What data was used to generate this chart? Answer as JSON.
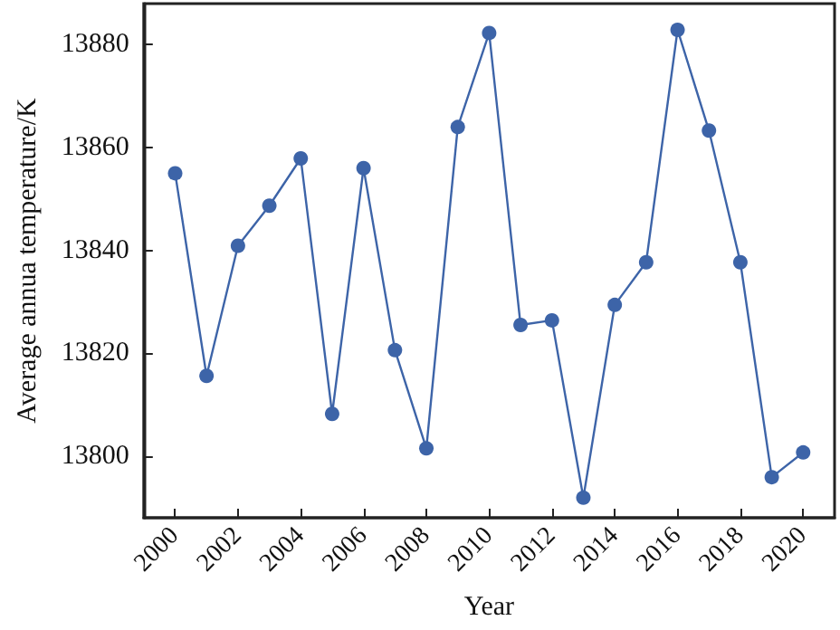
{
  "chart_data": {
    "type": "line",
    "xlabel": "Year",
    "ylabel": "Average annua temperature/K",
    "x": [
      2000,
      2001,
      2002,
      2003,
      2004,
      2005,
      2006,
      2007,
      2008,
      2009,
      2010,
      2011,
      2012,
      2013,
      2014,
      2015,
      2016,
      2017,
      2018,
      2019,
      2020
    ],
    "series": [
      {
        "color": "#3d64a8",
        "values": [
          13855,
          13815.6,
          13840.9,
          13848.7,
          13857.9,
          13808.2,
          13856,
          13820.6,
          13801.5,
          13864,
          13882.3,
          13825.5,
          13826.4,
          13791.9,
          13829.4,
          13837.7,
          13882.9,
          13863.3,
          13837.7,
          13795.9,
          13800.7
        ]
      }
    ],
    "xlim": [
      1999,
      2021
    ],
    "xticks": [
      2000,
      2002,
      2004,
      2006,
      2008,
      2010,
      2012,
      2014,
      2016,
      2018,
      2020
    ],
    "ylim": [
      13788,
      13888
    ],
    "yticks": [
      13800,
      13820,
      13840,
      13860,
      13880
    ],
    "marker": "circle",
    "line_style": "solid",
    "grid": false
  }
}
